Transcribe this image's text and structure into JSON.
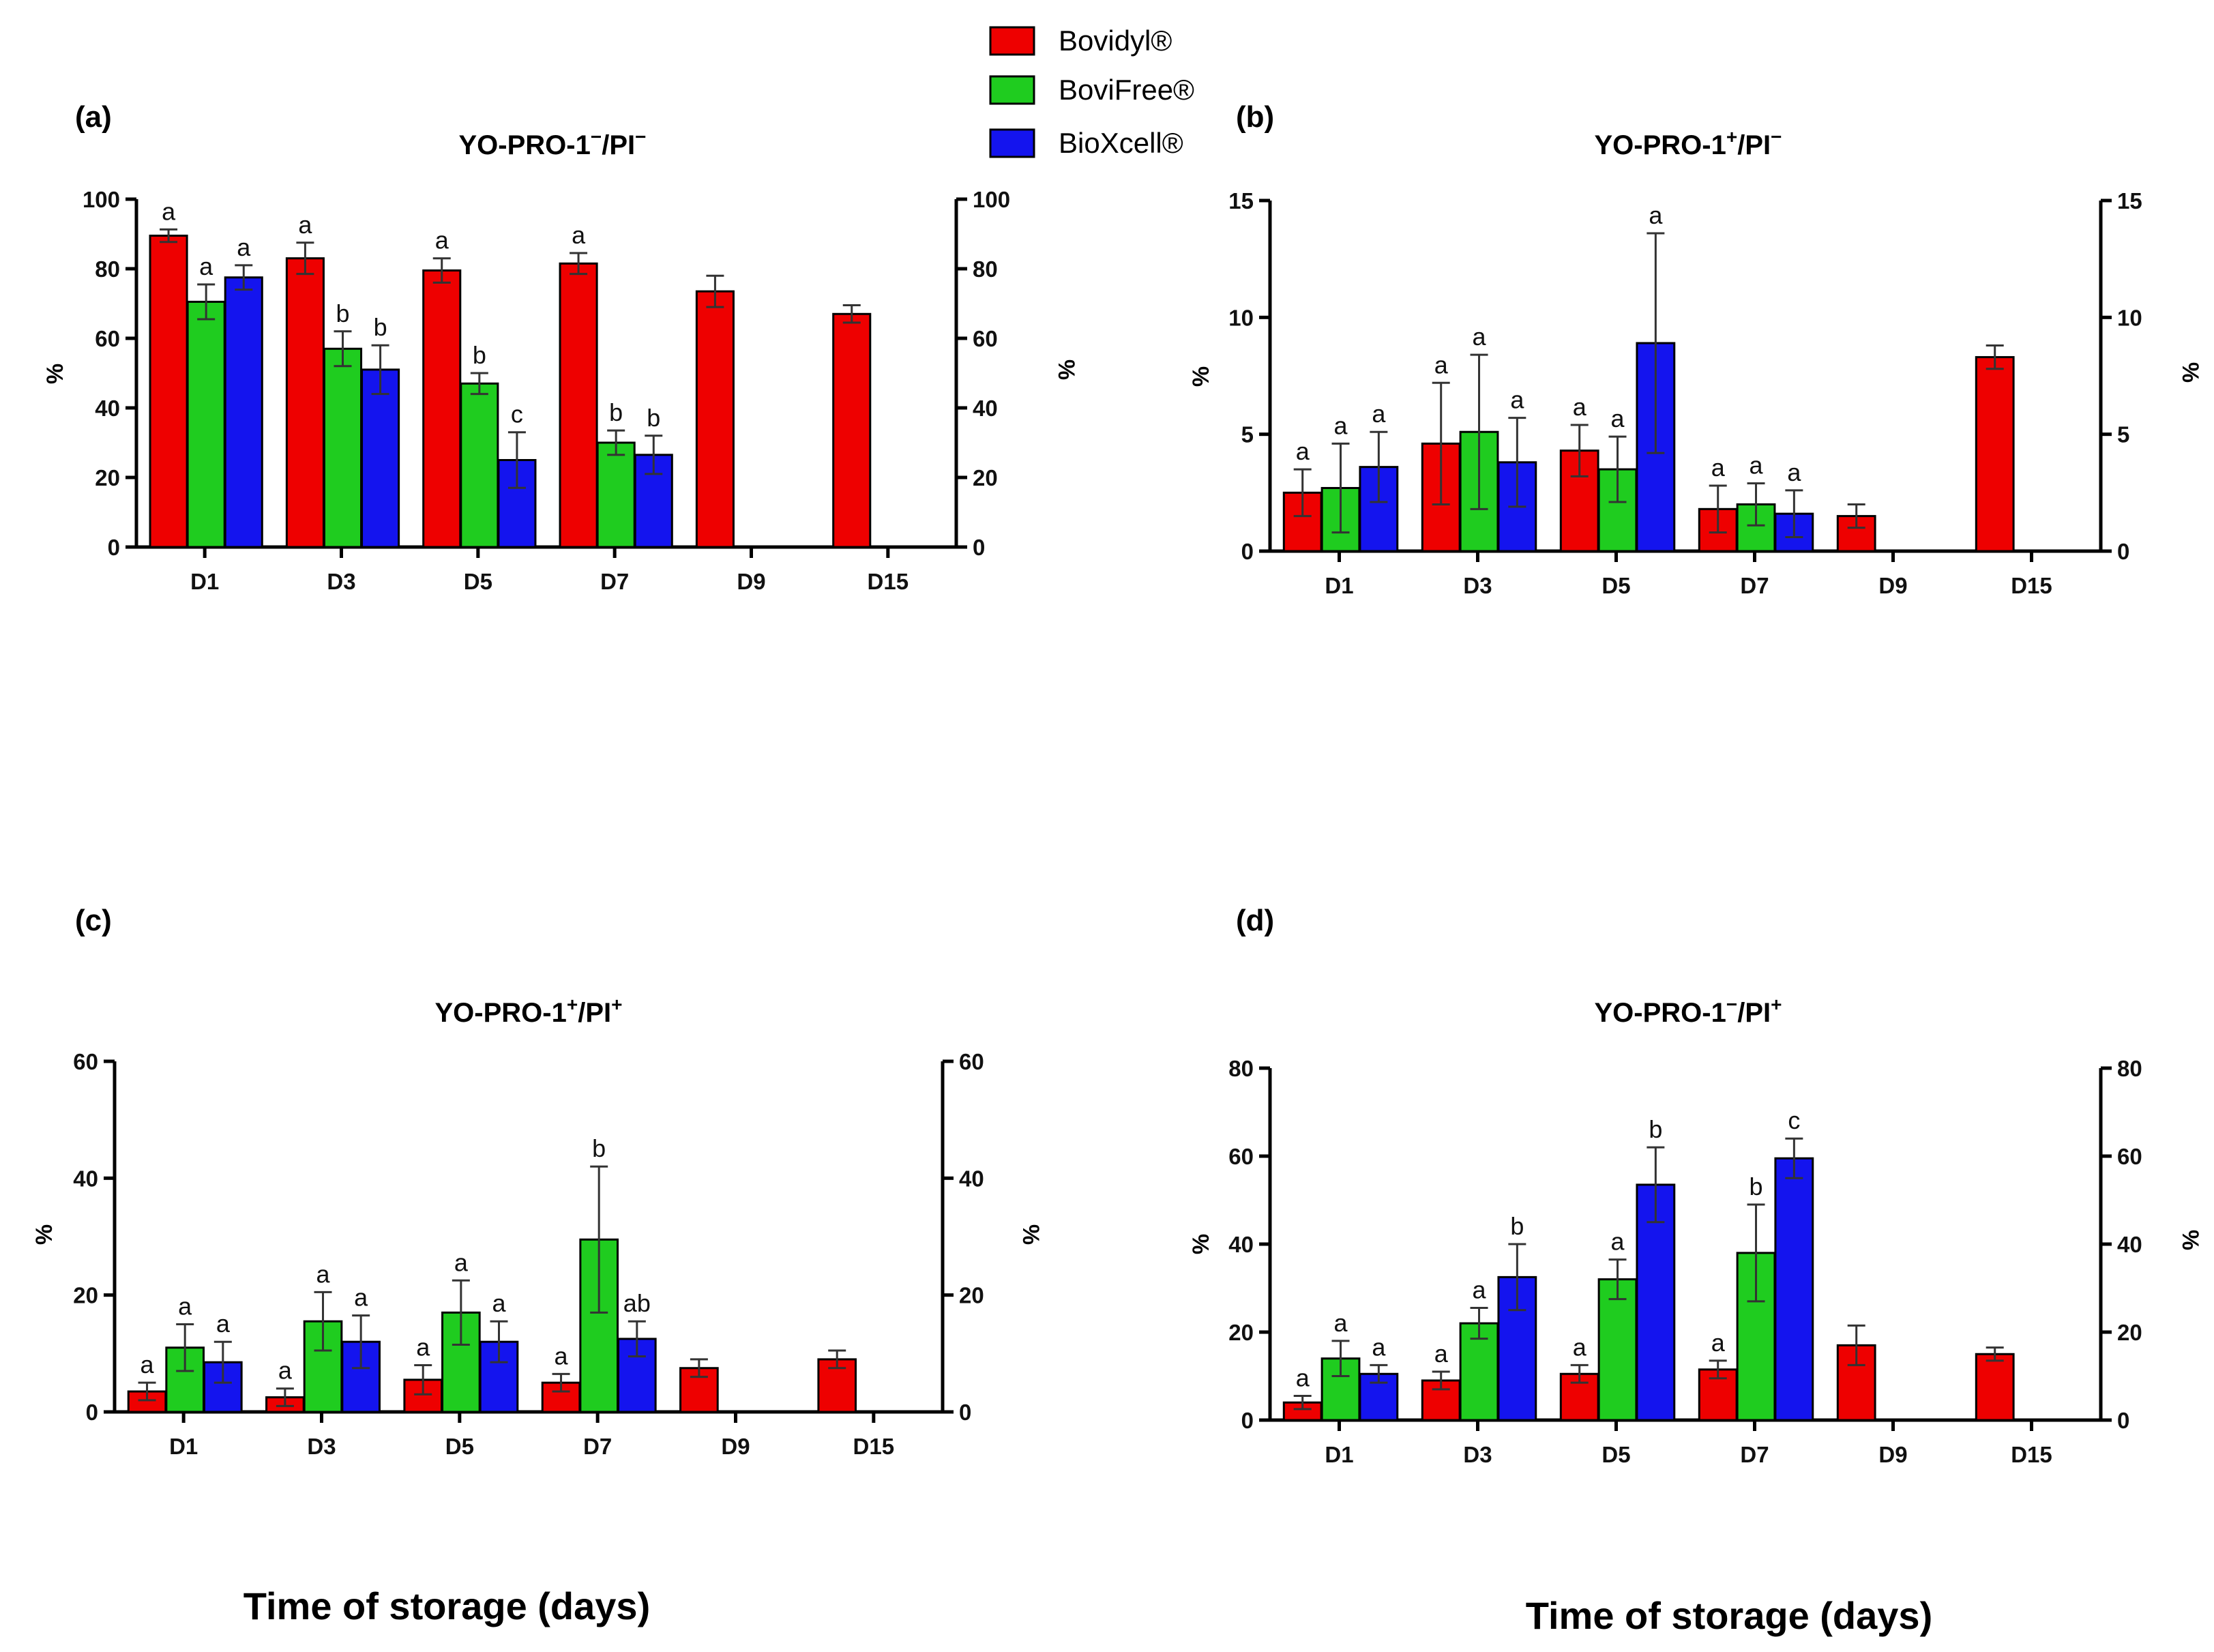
{
  "legend": [
    {
      "name": "Bovidyl®",
      "color": "#ee0000"
    },
    {
      "name": "BoviFree®",
      "color": "#1fcc1f"
    },
    {
      "name": "BioXcell®",
      "color": "#1414ee"
    }
  ],
  "x_axis_title": "Time of storage (days)",
  "chart_data": [
    {
      "type": "bar",
      "panel": "(a)",
      "title_main": "YO-PRO-1",
      "title_sup1": "−",
      "title_mid": "/PI",
      "title_sup2": "−",
      "ylabel": "%",
      "ylim": [
        0,
        100
      ],
      "yticks": [
        0,
        20,
        40,
        60,
        80,
        100
      ],
      "categories": [
        "D1",
        "D3",
        "D5",
        "D7",
        "D9",
        "D15"
      ],
      "series": [
        {
          "name": "Bovidyl®",
          "values": [
            89.5,
            83,
            79.5,
            81.5,
            73.5,
            67
          ],
          "errors": [
            1.8,
            4.5,
            3.5,
            3,
            4.5,
            2.5
          ],
          "labels": [
            "a",
            "a",
            "a",
            "a",
            "",
            ""
          ]
        },
        {
          "name": "BoviFree®",
          "values": [
            70.5,
            57,
            47,
            30,
            null,
            null
          ],
          "errors": [
            5,
            5,
            3,
            3.5,
            null,
            null
          ],
          "labels": [
            "a",
            "b",
            "b",
            "b",
            "",
            ""
          ]
        },
        {
          "name": "BioXcell®",
          "values": [
            77.5,
            51,
            25,
            26.5,
            null,
            null
          ],
          "errors": [
            3.5,
            7,
            8,
            5.5,
            null,
            null
          ],
          "labels": [
            "a",
            "b",
            "c",
            "b",
            "",
            ""
          ]
        }
      ]
    },
    {
      "type": "bar",
      "panel": "(b)",
      "title_main": "YO-PRO-1",
      "title_sup1": "+",
      "title_mid": "/PI",
      "title_sup2": "−",
      "ylabel": "%",
      "ylim": [
        0,
        15
      ],
      "yticks": [
        0,
        5,
        10,
        15
      ],
      "categories": [
        "D1",
        "D3",
        "D5",
        "D7",
        "D9",
        "D15"
      ],
      "series": [
        {
          "name": "Bovidyl®",
          "values": [
            2.5,
            4.6,
            4.3,
            1.8,
            1.5,
            8.3
          ],
          "errors": [
            1,
            2.6,
            1.1,
            1,
            0.5,
            0.5
          ],
          "labels": [
            "a",
            "a",
            "a",
            "a",
            "",
            ""
          ]
        },
        {
          "name": "BoviFree®",
          "values": [
            2.7,
            5.1,
            3.5,
            2,
            null,
            null
          ],
          "errors": [
            1.9,
            3.3,
            1.4,
            0.9,
            null,
            null
          ],
          "labels": [
            "a",
            "a",
            "a",
            "a",
            "",
            ""
          ]
        },
        {
          "name": "BioXcell®",
          "values": [
            3.6,
            3.8,
            8.9,
            1.6,
            null,
            null
          ],
          "errors": [
            1.5,
            1.9,
            4.7,
            1,
            null,
            null
          ],
          "labels": [
            "a",
            "a",
            "a",
            "a",
            "",
            ""
          ]
        }
      ]
    },
    {
      "type": "bar",
      "panel": "(c)",
      "title_main": "YO-PRO-1",
      "title_sup1": "+",
      "title_mid": "/PI",
      "title_sup2": "+",
      "ylabel": "%",
      "ylim": [
        0,
        60
      ],
      "yticks": [
        0,
        20,
        40,
        60
      ],
      "categories": [
        "D1",
        "D3",
        "D5",
        "D7",
        "D9",
        "D15"
      ],
      "series": [
        {
          "name": "Bovidyl®",
          "values": [
            3.5,
            2.5,
            5.5,
            5,
            7.5,
            9
          ],
          "errors": [
            1.5,
            1.5,
            2.5,
            1.5,
            1.5,
            1.5
          ],
          "labels": [
            "a",
            "a",
            "a",
            "a",
            "",
            ""
          ]
        },
        {
          "name": "BoviFree®",
          "values": [
            11,
            15.5,
            17,
            29.5,
            null,
            null
          ],
          "errors": [
            4,
            5,
            5.5,
            12.5,
            null,
            null
          ],
          "labels": [
            "a",
            "a",
            "a",
            "b",
            "",
            ""
          ]
        },
        {
          "name": "BioXcell®",
          "values": [
            8.5,
            12,
            12,
            12.5,
            null,
            null
          ],
          "errors": [
            3.5,
            4.5,
            3.5,
            3,
            null,
            null
          ],
          "labels": [
            "a",
            "a",
            "a",
            "ab",
            "",
            ""
          ]
        }
      ]
    },
    {
      "type": "bar",
      "panel": "(d)",
      "title_main": "YO-PRO-1",
      "title_sup1": "−",
      "title_mid": "/PI",
      "title_sup2": "+",
      "ylabel": "%",
      "ylim": [
        0,
        80
      ],
      "yticks": [
        0,
        20,
        40,
        60,
        80
      ],
      "categories": [
        "D1",
        "D3",
        "D5",
        "D7",
        "D9",
        "D15"
      ],
      "series": [
        {
          "name": "Bovidyl®",
          "values": [
            4,
            9,
            10.5,
            11.5,
            17,
            15
          ],
          "errors": [
            1.5,
            2,
            2,
            2,
            4.5,
            1.5
          ],
          "labels": [
            "a",
            "a",
            "a",
            "a",
            "",
            ""
          ]
        },
        {
          "name": "BoviFree®",
          "values": [
            14,
            22,
            32,
            38,
            null,
            null
          ],
          "errors": [
            4,
            3.5,
            4.5,
            11,
            null,
            null
          ],
          "labels": [
            "a",
            "a",
            "a",
            "b",
            "",
            ""
          ]
        },
        {
          "name": "BioXcell®",
          "values": [
            10.5,
            32.5,
            53.5,
            59.5,
            null,
            null
          ],
          "errors": [
            2,
            7.5,
            8.5,
            4.5,
            null,
            null
          ],
          "labels": [
            "a",
            "b",
            "b",
            "c",
            "",
            ""
          ]
        }
      ]
    }
  ]
}
